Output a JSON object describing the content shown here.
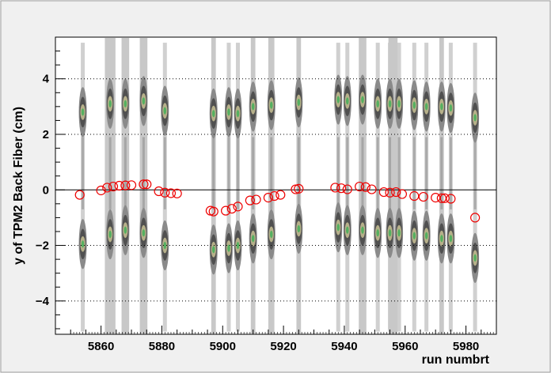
{
  "chart_data": {
    "type": "scatter",
    "title": "",
    "xlabel": "run numbrt",
    "ylabel": "y of TPM2 Back Fiber (cm)",
    "xlim": [
      5845,
      5990
    ],
    "ylim": [
      -5.2,
      5.5
    ],
    "x_ticks": [
      5860,
      5880,
      5900,
      5920,
      5940,
      5960,
      5980
    ],
    "x_tick_labels": [
      "5860",
      "5880",
      "5900",
      "5920",
      "5940",
      "5960",
      "5980"
    ],
    "y_ticks": [
      -4,
      -2,
      0,
      2,
      4
    ],
    "y_tick_labels": [
      "−4",
      "−2",
      "0",
      "2",
      "4"
    ],
    "grid": "dotted-horizontal",
    "reference_line_y": 0,
    "colors": {
      "frame_bg": "#f0f0f0",
      "plot_bg": "#ffffff",
      "band_light": "#c8c8c8",
      "band_mid": "#8a8a8a",
      "band_dark": "#505050",
      "core_tan": "#b6b08a",
      "core_green": "#55b060",
      "marker": "#ee0000"
    },
    "density_bands": [
      {
        "x": 5854,
        "upper": 2.8,
        "lower": -1.95
      },
      {
        "x": 5863,
        "upper": 3.1,
        "lower": -1.6
      },
      {
        "x": 5868,
        "upper": 3.1,
        "lower": -1.45
      },
      {
        "x": 5874,
        "upper": 3.2,
        "lower": -1.55
      },
      {
        "x": 5881,
        "upper": 2.85,
        "lower": -2.0
      },
      {
        "x": 5897,
        "upper": 2.75,
        "lower": -2.15
      },
      {
        "x": 5902,
        "upper": 2.8,
        "lower": -2.1
      },
      {
        "x": 5905,
        "upper": 2.75,
        "lower": -2.0
      },
      {
        "x": 5910,
        "upper": 3.0,
        "lower": -1.75
      },
      {
        "x": 5916,
        "upper": 3.05,
        "lower": -1.6
      },
      {
        "x": 5925,
        "upper": 3.15,
        "lower": -1.4
      },
      {
        "x": 5938,
        "upper": 3.25,
        "lower": -1.35
      },
      {
        "x": 5941,
        "upper": 3.2,
        "lower": -1.45
      },
      {
        "x": 5946,
        "upper": 3.25,
        "lower": -1.45
      },
      {
        "x": 5951,
        "upper": 3.1,
        "lower": -1.55
      },
      {
        "x": 5955,
        "upper": 3.1,
        "lower": -1.55
      },
      {
        "x": 5958,
        "upper": 3.1,
        "lower": -1.55
      },
      {
        "x": 5963,
        "upper": 3.05,
        "lower": -1.65
      },
      {
        "x": 5967,
        "upper": 3.0,
        "lower": -1.65
      },
      {
        "x": 5972,
        "upper": 3.0,
        "lower": -1.75
      },
      {
        "x": 5975,
        "upper": 2.95,
        "lower": -1.75
      },
      {
        "x": 5983,
        "upper": 2.6,
        "lower": -2.45
      }
    ],
    "light_columns": [
      {
        "x": 5863,
        "width": 3.5
      },
      {
        "x": 5868,
        "width": 2.5
      },
      {
        "x": 5874,
        "width": 2.5
      },
      {
        "x": 5897,
        "width": 1.5
      },
      {
        "x": 5910,
        "width": 1.5
      },
      {
        "x": 5916,
        "width": 2.0
      },
      {
        "x": 5925,
        "width": 1.5
      },
      {
        "x": 5946,
        "width": 2.5
      },
      {
        "x": 5956,
        "width": 3.0
      },
      {
        "x": 5972,
        "width": 1.5
      }
    ],
    "markers": [
      {
        "x": 5853,
        "y": -0.18
      },
      {
        "x": 5860,
        "y": -0.02
      },
      {
        "x": 5862,
        "y": 0.08
      },
      {
        "x": 5864,
        "y": 0.12
      },
      {
        "x": 5866,
        "y": 0.15
      },
      {
        "x": 5868,
        "y": 0.16
      },
      {
        "x": 5870,
        "y": 0.17
      },
      {
        "x": 5874,
        "y": 0.2
      },
      {
        "x": 5875,
        "y": 0.2
      },
      {
        "x": 5879,
        "y": -0.05
      },
      {
        "x": 5881,
        "y": -0.1
      },
      {
        "x": 5883,
        "y": -0.12
      },
      {
        "x": 5885,
        "y": -0.13
      },
      {
        "x": 5896,
        "y": -0.75
      },
      {
        "x": 5897,
        "y": -0.78
      },
      {
        "x": 5901,
        "y": -0.75
      },
      {
        "x": 5903,
        "y": -0.68
      },
      {
        "x": 5905,
        "y": -0.6
      },
      {
        "x": 5909,
        "y": -0.38
      },
      {
        "x": 5911,
        "y": -0.35
      },
      {
        "x": 5915,
        "y": -0.28
      },
      {
        "x": 5917,
        "y": -0.22
      },
      {
        "x": 5919,
        "y": -0.18
      },
      {
        "x": 5924,
        "y": 0.02
      },
      {
        "x": 5925,
        "y": 0.04
      },
      {
        "x": 5937,
        "y": 0.08
      },
      {
        "x": 5939,
        "y": 0.06
      },
      {
        "x": 5941,
        "y": 0.02
      },
      {
        "x": 5945,
        "y": 0.12
      },
      {
        "x": 5947,
        "y": 0.1
      },
      {
        "x": 5949,
        "y": 0.02
      },
      {
        "x": 5953,
        "y": -0.08
      },
      {
        "x": 5955,
        "y": -0.1
      },
      {
        "x": 5957,
        "y": -0.08
      },
      {
        "x": 5959,
        "y": -0.15
      },
      {
        "x": 5963,
        "y": -0.22
      },
      {
        "x": 5966,
        "y": -0.25
      },
      {
        "x": 5970,
        "y": -0.28
      },
      {
        "x": 5972,
        "y": -0.3
      },
      {
        "x": 5973,
        "y": -0.3
      },
      {
        "x": 5975,
        "y": -0.32
      },
      {
        "x": 5983,
        "y": -1.0
      }
    ]
  }
}
